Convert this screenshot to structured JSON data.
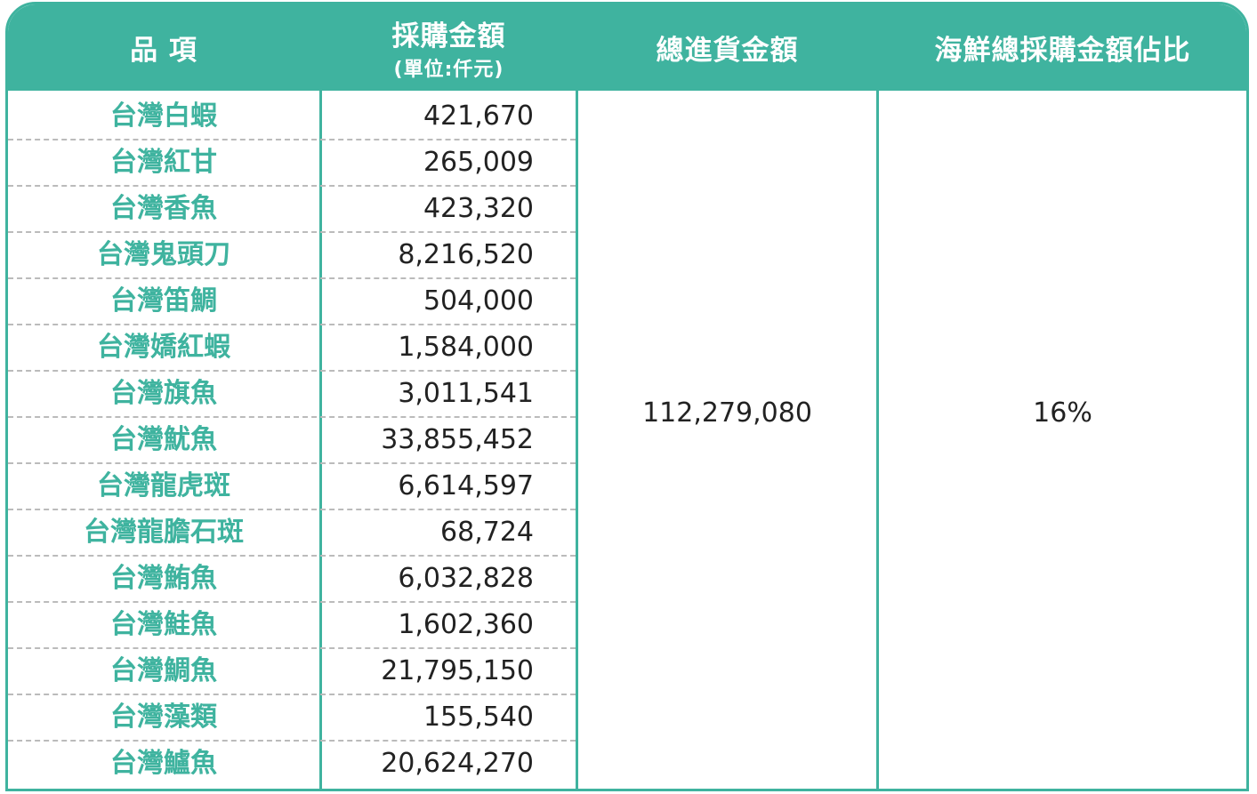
{
  "table": {
    "header": [
      "品 項",
      "採購金額",
      "(單位:仟元)",
      "總進貨金額",
      "海鮮總採購金額佔比"
    ],
    "rows": [
      [
        "台灣白蝦",
        "421,670"
      ],
      [
        "台灣紅甘",
        "265,009"
      ],
      [
        "台灣香魚",
        "423,320"
      ],
      [
        "台灣鬼頭刀",
        "8,216,520"
      ],
      [
        "台灣笛鯛",
        "504,000"
      ],
      [
        "台灣嬌紅蝦",
        "1,584,000"
      ],
      [
        "台灣旗魚",
        "3,011,541"
      ],
      [
        "台灣魷魚",
        "33,855,452"
      ],
      [
        "台灣龍虎斑",
        "6,614,597"
      ],
      [
        "台灣龍膽石斑",
        "68,724"
      ],
      [
        "台灣鮪魚",
        "6,032,828"
      ],
      [
        "台灣鮭魚",
        "1,602,360"
      ],
      [
        "台灣鯛魚",
        "21,795,150"
      ],
      [
        "台灣藻類",
        "155,540"
      ],
      [
        "台灣鱸魚",
        "20,624,270"
      ]
    ],
    "total": "112,279,080",
    "share": "16%"
  }
}
